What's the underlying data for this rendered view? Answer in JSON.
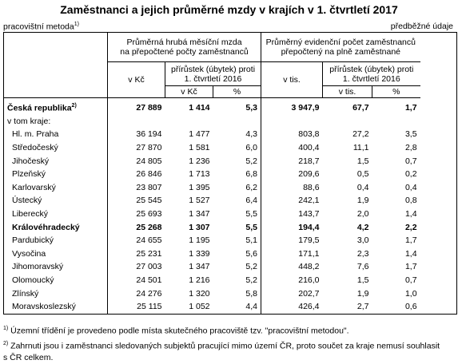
{
  "title": "Zaměstnanci a jejich průměrné mzdy v krajích v 1. čtvrtletí 2017",
  "unit_note": "pracovištní metoda",
  "unit_note_mark": "1)",
  "prelim_note": "předběžné údaje",
  "header": {
    "wage_group": "Průměrná hrubá měsíční mzda\nna přepočtené počty zaměstnanců",
    "wage_unit": "v Kč",
    "wage_change": "přírůstek (úbytek) proti\n1. čtvrtletí 2016",
    "wage_change_kc": "v Kč",
    "wage_change_pct": "%",
    "emp_group": "Průměrný evidenční počet zaměstnanců\npřepočtený na plně zaměstnané",
    "emp_unit": "v tis.",
    "emp_change": "přírůstek (úbytek) proti\n1. čtvrtletí 2016",
    "emp_change_tis": "v tis.",
    "emp_change_pct": "%"
  },
  "total": {
    "name": "Česká republika",
    "mark": "2)",
    "wage": "27 889",
    "wage_diff": "1 414",
    "wage_pct": "5,3",
    "emp": "3 947,9",
    "emp_diff": "67,7",
    "emp_pct": "1,7"
  },
  "subheading": "v tom kraje:",
  "regions": [
    {
      "name": "Hl. m. Praha",
      "wage": "36 194",
      "wage_diff": "1 477",
      "wage_pct": "4,3",
      "emp": "803,8",
      "emp_diff": "27,2",
      "emp_pct": "3,5",
      "bold": false
    },
    {
      "name": "Středočeský",
      "wage": "27 870",
      "wage_diff": "1 581",
      "wage_pct": "6,0",
      "emp": "400,4",
      "emp_diff": "11,1",
      "emp_pct": "2,8",
      "bold": false
    },
    {
      "name": "Jihočeský",
      "wage": "24 805",
      "wage_diff": "1 236",
      "wage_pct": "5,2",
      "emp": "218,7",
      "emp_diff": "1,5",
      "emp_pct": "0,7",
      "bold": false
    },
    {
      "name": "Plzeňský",
      "wage": "26 846",
      "wage_diff": "1 713",
      "wage_pct": "6,8",
      "emp": "209,6",
      "emp_diff": "0,5",
      "emp_pct": "0,2",
      "bold": false
    },
    {
      "name": "Karlovarský",
      "wage": "23 807",
      "wage_diff": "1 395",
      "wage_pct": "6,2",
      "emp": "88,6",
      "emp_diff": "0,4",
      "emp_pct": "0,4",
      "bold": false
    },
    {
      "name": "Ústecký",
      "wage": "25 545",
      "wage_diff": "1 527",
      "wage_pct": "6,4",
      "emp": "242,1",
      "emp_diff": "1,9",
      "emp_pct": "0,8",
      "bold": false
    },
    {
      "name": "Liberecký",
      "wage": "25 693",
      "wage_diff": "1 347",
      "wage_pct": "5,5",
      "emp": "143,7",
      "emp_diff": "2,0",
      "emp_pct": "1,4",
      "bold": false
    },
    {
      "name": "Královéhradecký",
      "wage": "25 268",
      "wage_diff": "1 307",
      "wage_pct": "5,5",
      "emp": "194,4",
      "emp_diff": "4,2",
      "emp_pct": "2,2",
      "bold": true
    },
    {
      "name": "Pardubický",
      "wage": "24 655",
      "wage_diff": "1 195",
      "wage_pct": "5,1",
      "emp": "179,5",
      "emp_diff": "3,0",
      "emp_pct": "1,7",
      "bold": false
    },
    {
      "name": "Vysočina",
      "wage": "25 231",
      "wage_diff": "1 339",
      "wage_pct": "5,6",
      "emp": "171,1",
      "emp_diff": "2,3",
      "emp_pct": "1,4",
      "bold": false
    },
    {
      "name": "Jihomoravský",
      "wage": "27 003",
      "wage_diff": "1 347",
      "wage_pct": "5,2",
      "emp": "448,2",
      "emp_diff": "7,6",
      "emp_pct": "1,7",
      "bold": false
    },
    {
      "name": "Olomoucký",
      "wage": "24 501",
      "wage_diff": "1 216",
      "wage_pct": "5,2",
      "emp": "216,0",
      "emp_diff": "1,5",
      "emp_pct": "0,7",
      "bold": false
    },
    {
      "name": "Zlínský",
      "wage": "24 276",
      "wage_diff": "1 320",
      "wage_pct": "5,8",
      "emp": "202,7",
      "emp_diff": "1,9",
      "emp_pct": "1,0",
      "bold": false
    },
    {
      "name": "Moravskoslezský",
      "wage": "25 115",
      "wage_diff": "1 052",
      "wage_pct": "4,4",
      "emp": "426,4",
      "emp_diff": "2,7",
      "emp_pct": "0,6",
      "bold": false
    }
  ],
  "footnotes": [
    {
      "mark": "1)",
      "text": "Územní třídění je provedeno podle místa skutečného pracoviště tzv. \"pracovištní metodou\"."
    },
    {
      "mark": "2)",
      "text": "Zahrnuti jsou i zaměstnanci sledovaných subjektů pracující mimo území ČR, proto součet za kraje nemusí souhlasit",
      "text2": "s ČR celkem."
    }
  ]
}
